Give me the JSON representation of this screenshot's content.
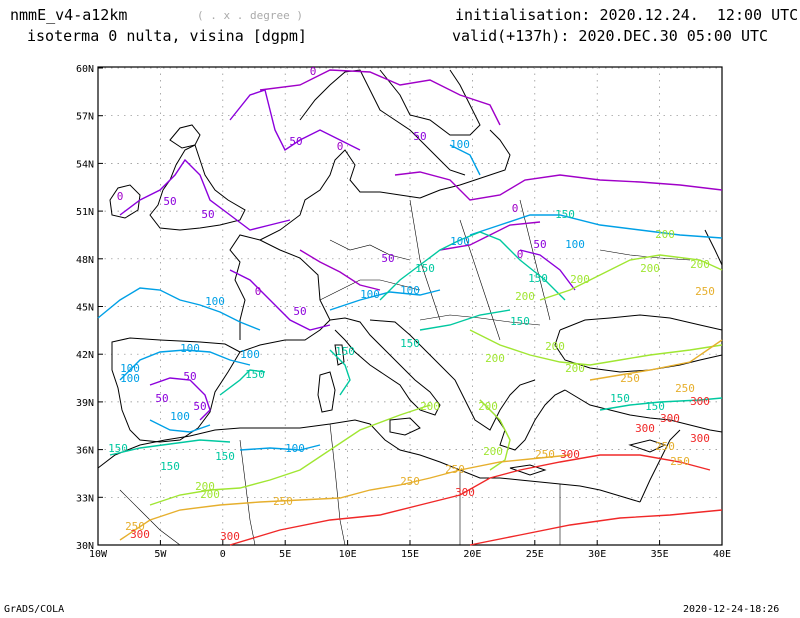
{
  "header": {
    "model": "nmmE_v4-a12km",
    "units": "( . x . degree )",
    "field": "isoterma 0 nulta, visina [dgpm]",
    "init_label": "initialisation: 2020.12.24.  12:00 UTC",
    "valid_label": "valid(+137h): 2020.DEC.30 05:00 UTC"
  },
  "footer": {
    "software": "GrADS/COLA",
    "timestamp": "2020-12-24-18:26"
  },
  "axes": {
    "lon_ticks": [
      "10W",
      "5W",
      "0",
      "5E",
      "10E",
      "15E",
      "20E",
      "25E",
      "30E",
      "35E",
      "40E"
    ],
    "lat_ticks": [
      "30N",
      "33N",
      "36N",
      "39N",
      "42N",
      "45N",
      "48N",
      "51N",
      "54N",
      "57N",
      "60N"
    ]
  },
  "contours": {
    "levels": [
      {
        "value": "0",
        "color": "#a000c8"
      },
      {
        "value": "50",
        "color": "#8c00dc"
      },
      {
        "value": "100",
        "color": "#00a0e6"
      },
      {
        "value": "150",
        "color": "#00c8a0"
      },
      {
        "value": "200",
        "color": "#a0e632"
      },
      {
        "value": "250",
        "color": "#e6af2d"
      },
      {
        "value": "300",
        "color": "#f02828"
      }
    ]
  }
}
